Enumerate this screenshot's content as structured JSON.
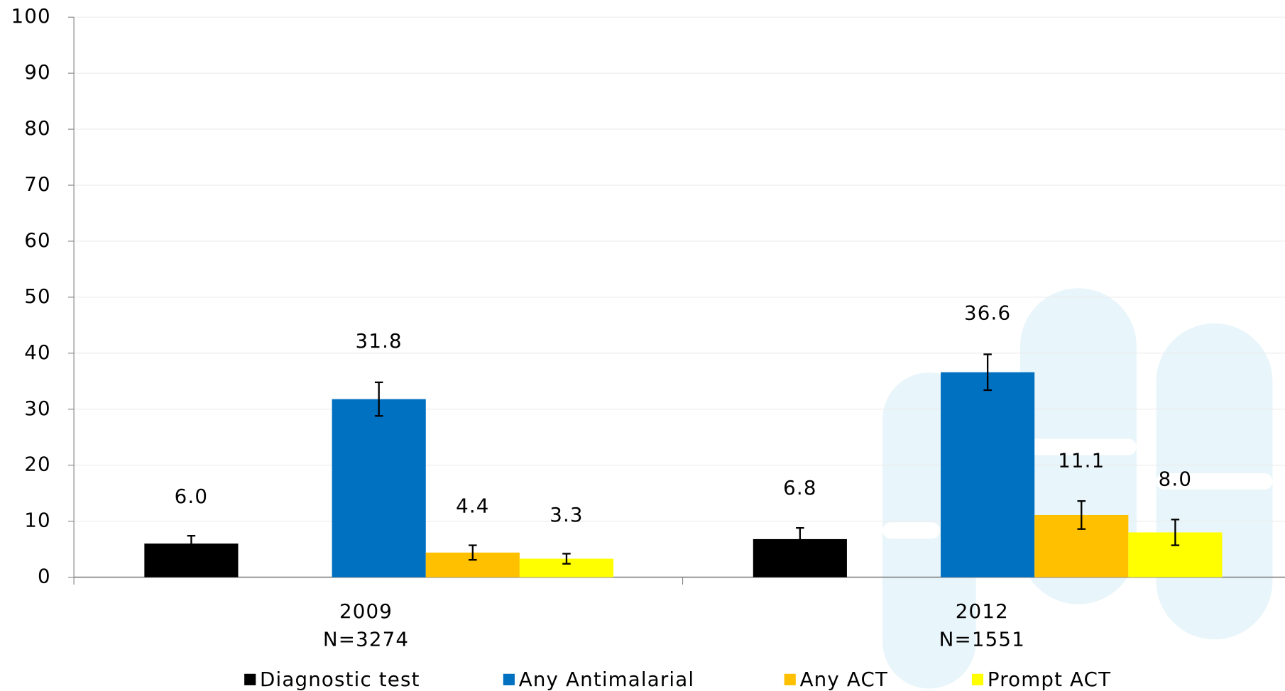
{
  "chart_data": {
    "type": "bar",
    "categories": [
      [
        "2009",
        "N=3274"
      ],
      [
        "2012",
        "N=1551"
      ]
    ],
    "series": [
      {
        "name": "Diagnostic test",
        "color": "#000000",
        "values": [
          6.0,
          6.8
        ],
        "value_labels": [
          "6.0",
          "6.8"
        ],
        "errors": [
          1.4,
          2.0
        ]
      },
      {
        "name": "Any Antimalarial",
        "color": "#0070c0",
        "values": [
          31.8,
          36.6
        ],
        "value_labels": [
          "31.8",
          "36.6"
        ],
        "errors": [
          3.0,
          3.2
        ]
      },
      {
        "name": "Any ACT",
        "color": "#ffc000",
        "values": [
          4.4,
          11.1
        ],
        "value_labels": [
          "4.4",
          "11.1"
        ],
        "errors": [
          1.3,
          2.5
        ]
      },
      {
        "name": "Prompt ACT",
        "color": "#ffff00",
        "values": [
          3.3,
          8.0
        ],
        "value_labels": [
          "3.3",
          "8.0"
        ],
        "errors": [
          0.9,
          2.3
        ]
      }
    ],
    "ylim": [
      0,
      100
    ],
    "yticks": [
      0,
      10,
      20,
      30,
      40,
      50,
      60,
      70,
      80,
      90,
      100
    ],
    "grid": true,
    "legend": "bottom"
  }
}
